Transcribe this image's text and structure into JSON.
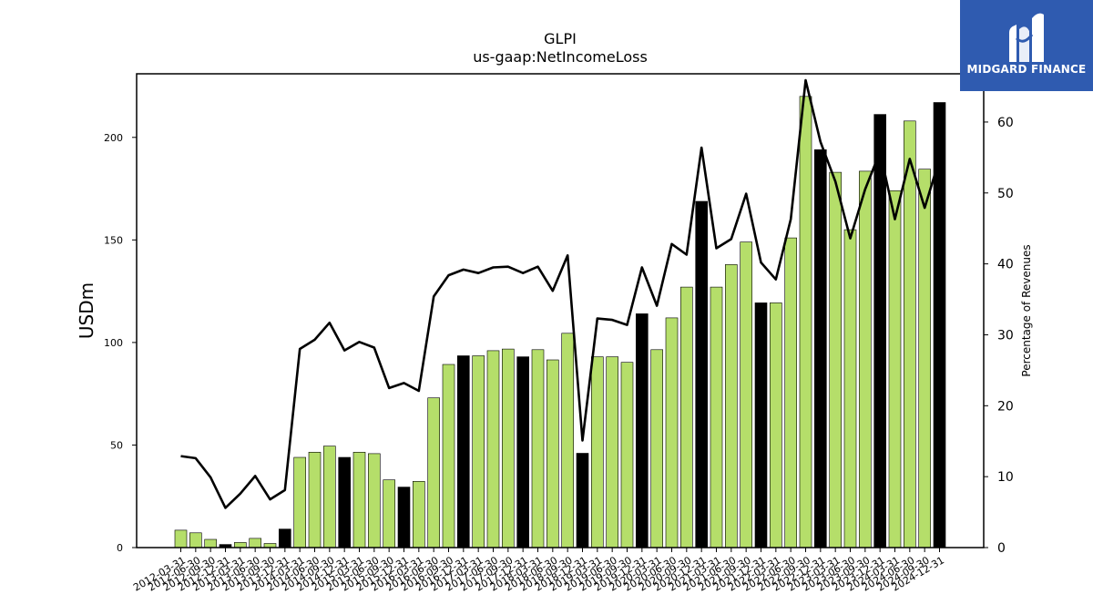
{
  "logo": {
    "text": "MIDGARD FINANCE"
  },
  "colors": {
    "bar_regular": "#b5de6a",
    "bar_annual": "#000000",
    "line": "#000000",
    "logo_bg": "#2f5bb0"
  },
  "chart_data": {
    "type": "bar",
    "title": "GLPI",
    "subtitle": "us-gaap:NetIncomeLoss",
    "ylabel": "USDm",
    "y2label": "Percentage of Revenues",
    "ylim": [
      0,
      231
    ],
    "y2lim": [
      0,
      66.8
    ],
    "yticks": [
      0,
      50,
      100,
      150,
      200
    ],
    "y2ticks": [
      0,
      10,
      20,
      30,
      40,
      50,
      60
    ],
    "categories": [
      "2012-03-31",
      "2012-06-30",
      "2012-09-30",
      "2012-12-31",
      "2013-03-31",
      "2013-06-30",
      "2013-09-30",
      "2013-12-31",
      "2014-03-31",
      "2014-06-30",
      "2014-09-30",
      "2014-12-31",
      "2015-03-31",
      "2015-06-30",
      "2015-09-30",
      "2015-12-31",
      "2016-03-31",
      "2016-06-30",
      "2016-09-30",
      "2016-12-31",
      "2017-03-31",
      "2017-06-30",
      "2017-09-30",
      "2017-12-31",
      "2018-03-31",
      "2018-06-30",
      "2018-09-30",
      "2018-12-31",
      "2019-03-31",
      "2019-06-30",
      "2019-09-30",
      "2019-12-31",
      "2020-03-31",
      "2020-06-30",
      "2020-09-30",
      "2020-12-31",
      "2021-03-31",
      "2021-06-30",
      "2021-09-30",
      "2021-12-31",
      "2022-03-31",
      "2022-06-30",
      "2022-09-30",
      "2022-12-31",
      "2023-03-31",
      "2023-06-30",
      "2023-09-30",
      "2023-12-31",
      "2024-03-31",
      "2024-06-30",
      "2024-09-30",
      "2024-12-31"
    ],
    "xtick_labels": [
      "2012-03-31",
      "2012-06-30",
      "2012-09-30",
      "2012-12-31",
      "2013-03-31",
      "2013-06-30",
      "2013-09-30",
      "2013-12-31",
      "2014-03-31",
      "2014-06-30",
      "2014-09-30",
      "2014-12-31",
      "2015-03-31",
      "2015-06-30",
      "2015-09-30",
      "2015-12-31",
      "2016-03-31",
      "2016-06-30",
      "2016-09-30",
      "2016-12-31",
      "2017-03-31",
      "2017-06-30",
      "2017-09-30",
      "2017-12-31",
      "2018-03-31",
      "2018-06-30",
      "2018-09-30",
      "2018-12-31",
      "2019-03-31",
      "2019-06-30",
      "2019-09-30",
      "2019-12-31",
      "2020-03-31",
      "2020-06-30",
      "2020-09-30",
      "2020-12-31",
      "2021-03-31",
      "2021-06-30",
      "2021-09-30",
      "2021-12-31",
      "2022-03-31",
      "2022-06-30",
      "2022-09-30",
      "2022-12-31",
      "2023-03-31",
      "2023-06-30",
      "2023-09-30",
      "2023-12-31",
      "2024-03-31",
      "2024-06-30",
      "2024-09-30",
      "2024-12-31"
    ],
    "series": [
      {
        "type": "bar",
        "values": [
          8.5,
          7.2,
          4.0,
          1.5,
          2.5,
          4.5,
          2.0,
          9.0,
          44.0,
          46.5,
          49.5,
          44.0,
          46.5,
          45.8,
          33.0,
          29.5,
          32.3,
          73.0,
          89.3,
          93.5,
          93.5,
          96.0,
          96.8,
          93.0,
          96.5,
          91.5,
          104.5,
          46.0,
          93.0,
          93.0,
          90.3,
          114.0,
          96.5,
          112.0,
          127.0,
          168.8,
          127.0,
          138.0,
          149.0,
          119.3,
          119.3,
          151.0,
          220.0,
          194.0,
          183.0,
          155.0,
          183.5,
          211.2,
          174.0,
          208.0,
          184.5,
          217.0
        ],
        "annual": [
          false,
          false,
          false,
          true,
          false,
          false,
          false,
          true,
          false,
          false,
          false,
          true,
          false,
          false,
          false,
          true,
          false,
          false,
          false,
          true,
          false,
          false,
          false,
          true,
          false,
          false,
          false,
          true,
          false,
          false,
          false,
          true,
          false,
          false,
          false,
          true,
          false,
          false,
          false,
          true,
          false,
          false,
          false,
          true,
          false,
          false,
          false,
          true,
          false,
          false,
          false,
          true
        ]
      },
      {
        "type": "line",
        "axis": "right",
        "values": [
          12.9,
          12.6,
          9.9,
          5.6,
          7.6,
          10.1,
          6.8,
          8.1,
          28.0,
          29.3,
          31.7,
          27.8,
          29.0,
          28.2,
          22.5,
          23.2,
          22.1,
          35.4,
          38.4,
          39.2,
          38.7,
          39.5,
          39.6,
          38.7,
          39.6,
          36.2,
          41.2,
          15.1,
          32.3,
          32.1,
          31.4,
          39.5,
          34.1,
          42.8,
          41.3,
          56.4,
          42.2,
          43.5,
          49.9,
          40.2,
          37.8,
          46.3,
          65.9,
          57.2,
          51.6,
          43.6,
          50.5,
          55.8,
          46.3,
          54.8,
          47.9,
          54.8
        ]
      }
    ],
    "grid": false,
    "legend": "none"
  }
}
